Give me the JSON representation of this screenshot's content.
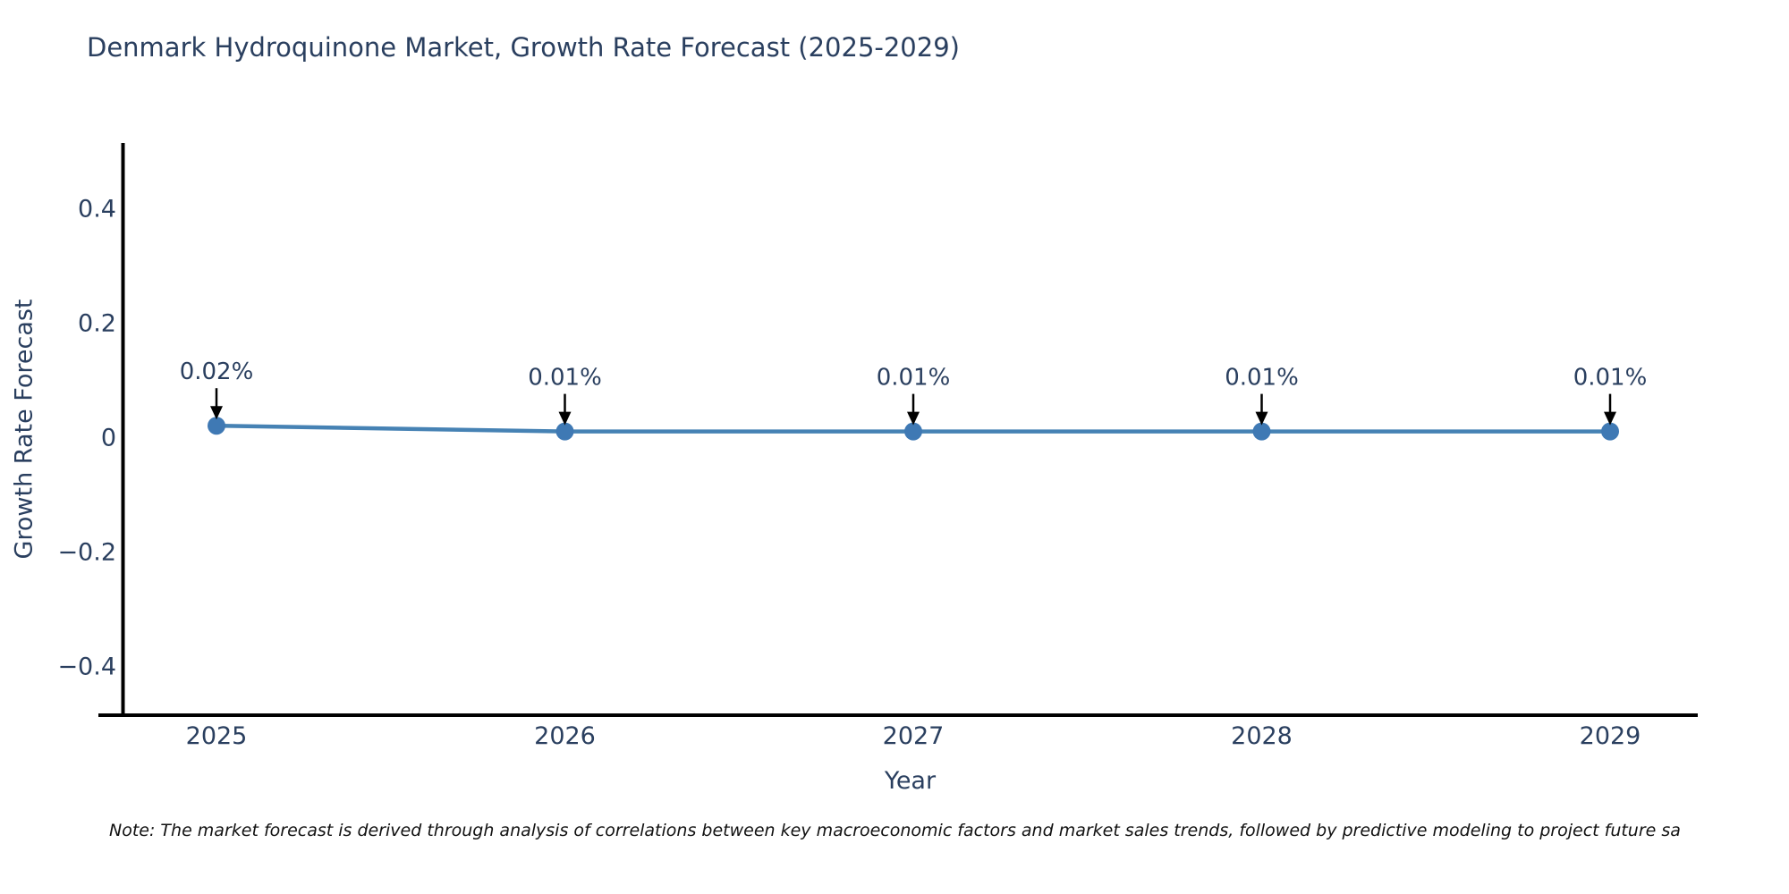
{
  "page": {
    "background": "#ffffff"
  },
  "chart_data": {
    "type": "line",
    "title": "Denmark Hydroquinone Market, Growth Rate Forecast (2025-2029)",
    "xlabel": "Year",
    "ylabel": "Growth Rate Forecast",
    "categories": [
      "2025",
      "2026",
      "2027",
      "2028",
      "2029"
    ],
    "series": [
      {
        "name": "Growth Rate Forecast",
        "values": [
          0.02,
          0.01,
          0.01,
          0.01,
          0.01
        ]
      }
    ],
    "point_labels": [
      "0.02%",
      "0.01%",
      "0.01%",
      "0.01%",
      "0.01%"
    ],
    "yticks": {
      "values": [
        0.4,
        0.2,
        0,
        -0.2,
        -0.4
      ],
      "labels": [
        "0.4",
        "0.2",
        "0",
        "−0.2",
        "−0.4"
      ]
    },
    "ylim": [
      -0.49,
      0.51
    ],
    "grid": false,
    "legend": "none",
    "colors": {
      "line": "#4682b4",
      "marker": "#3f79b4",
      "axis": "#000000",
      "text": "#2a3f5f",
      "annotation_arrow": "#000000"
    }
  },
  "note": {
    "text": "Note: The market forecast is derived through analysis of correlations between key macroeconomic factors and market sales trends, followed by predictive modeling to project future sa"
  }
}
